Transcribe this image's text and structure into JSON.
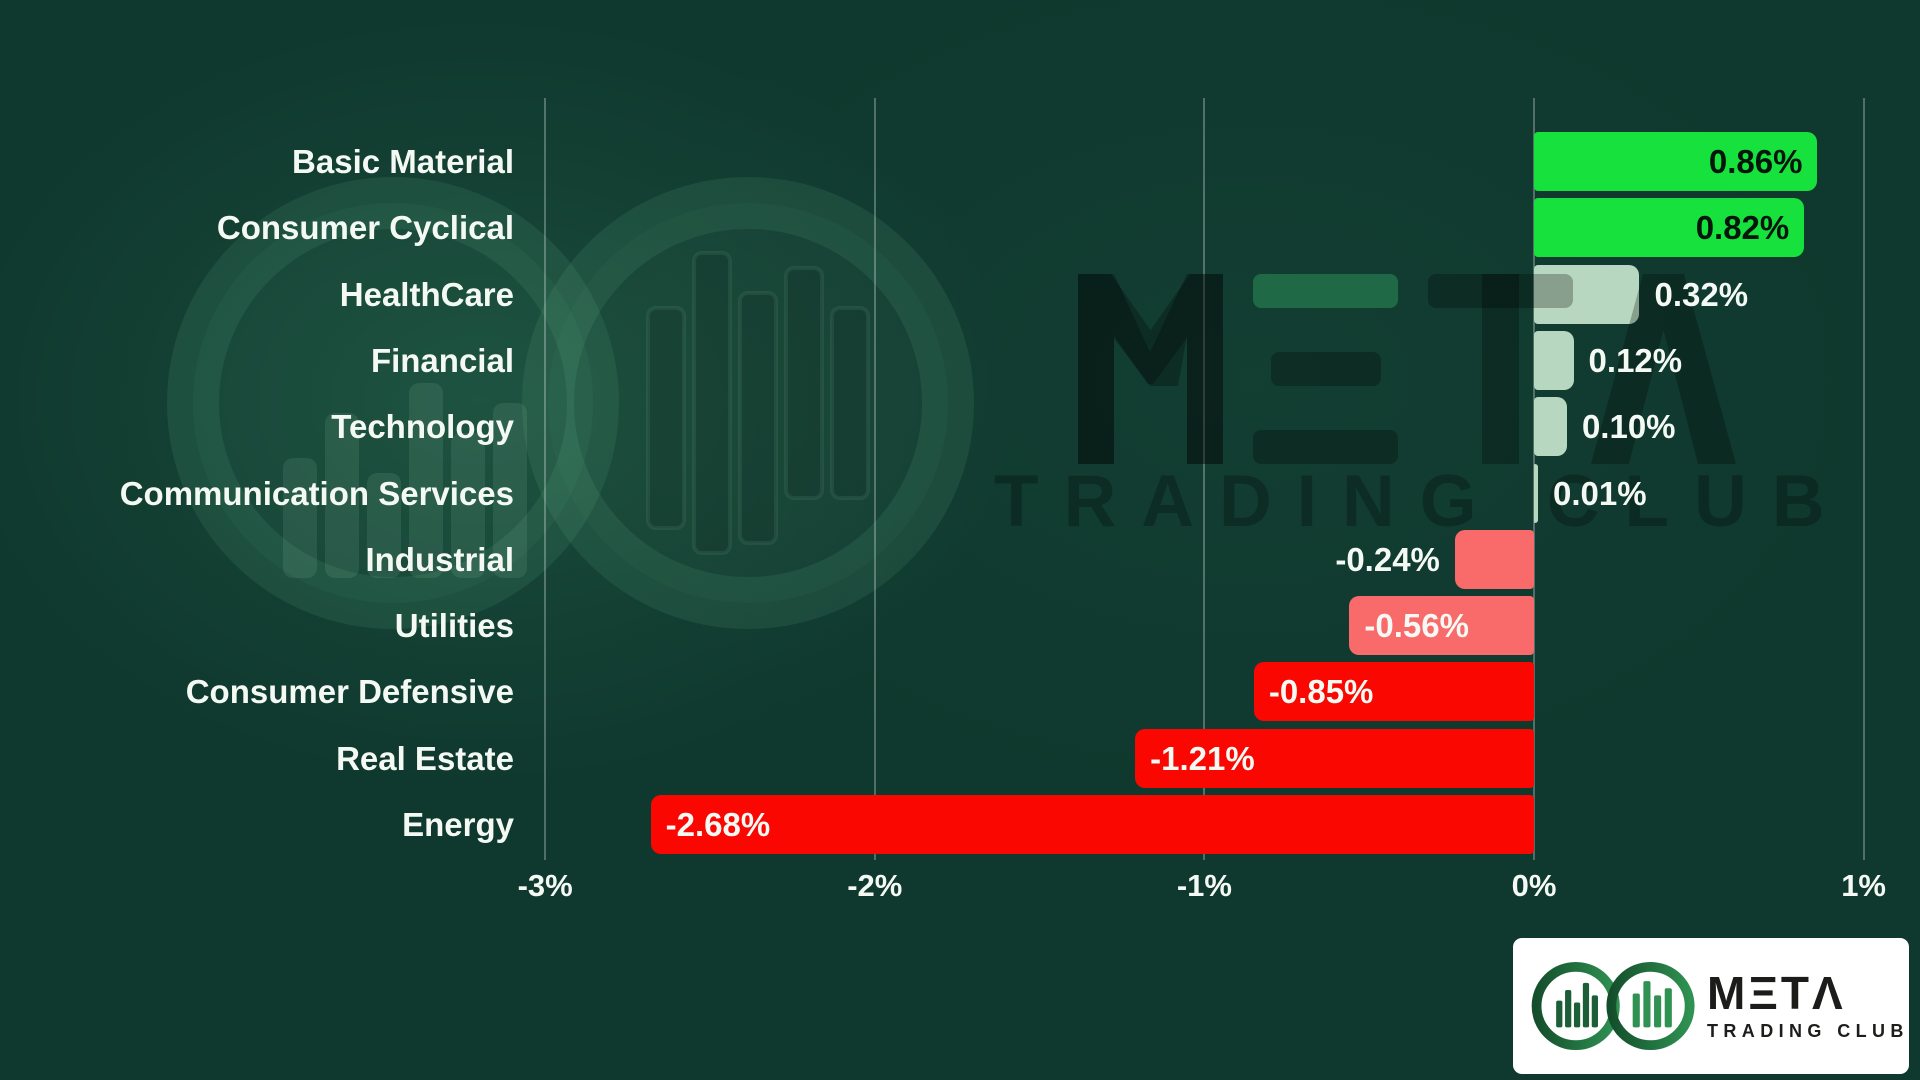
{
  "watermark": {
    "wordmark": "META",
    "line2": "TRADING CLUB"
  },
  "logo_card": {
    "wordmark": "MΞTΛ",
    "subtitle": "TRADING CLUB"
  },
  "chart_data": {
    "type": "bar",
    "orientation": "horizontal",
    "title": "",
    "xlabel": "",
    "ylabel": "",
    "xlim": [
      -3,
      1
    ],
    "grid": true,
    "legend": "none",
    "x_ticks": [
      {
        "value": -3,
        "label": "-3%"
      },
      {
        "value": -2,
        "label": "-2%"
      },
      {
        "value": -1,
        "label": "-1%"
      },
      {
        "value": 0,
        "label": "0%"
      },
      {
        "value": 1,
        "label": "1%"
      }
    ],
    "palette": {
      "bright_green": "#17e13c",
      "pale_green": "#b8d7c0",
      "salmon": "#f96a6a",
      "red": "#fb0702",
      "background": "#0f382e",
      "category_text": "#f4f9f4",
      "value_dark": "#04150c",
      "value_light": "#f4f9f4",
      "gridline": "rgba(255,255,255,0.28)"
    },
    "bars": [
      {
        "category": "Basic Material",
        "value": 0.86,
        "label": "0.86%",
        "color": "bright_green",
        "label_position": "inside-end",
        "label_style": "dark"
      },
      {
        "category": "Consumer Cyclical",
        "value": 0.82,
        "label": "0.82%",
        "color": "bright_green",
        "label_position": "inside-end",
        "label_style": "dark"
      },
      {
        "category": "HealthCare",
        "value": 0.32,
        "label": "0.32%",
        "color": "pale_green",
        "label_position": "outside-end",
        "label_style": "light"
      },
      {
        "category": "Financial",
        "value": 0.12,
        "label": "0.12%",
        "color": "pale_green",
        "label_position": "outside-end",
        "label_style": "light"
      },
      {
        "category": "Technology",
        "value": 0.1,
        "label": "0.10%",
        "color": "pale_green",
        "label_position": "outside-end",
        "label_style": "light"
      },
      {
        "category": "Communication Services",
        "value": 0.01,
        "label": "0.01%",
        "color": "pale_green",
        "label_position": "outside-end",
        "label_style": "light"
      },
      {
        "category": "Industrial",
        "value": -0.24,
        "label": "-0.24%",
        "color": "salmon",
        "label_position": "outside-start",
        "label_style": "light"
      },
      {
        "category": "Utilities",
        "value": -0.56,
        "label": "-0.56%",
        "color": "salmon",
        "label_position": "inside-start",
        "label_style": "light"
      },
      {
        "category": "Consumer Defensive",
        "value": -0.85,
        "label": "-0.85%",
        "color": "red",
        "label_position": "inside-start",
        "label_style": "light"
      },
      {
        "category": "Real Estate",
        "value": -1.21,
        "label": "-1.21%",
        "color": "red",
        "label_position": "inside-start",
        "label_style": "light"
      },
      {
        "category": "Energy",
        "value": -2.68,
        "label": "-2.68%",
        "color": "red",
        "label_position": "inside-start",
        "label_style": "light"
      }
    ]
  }
}
